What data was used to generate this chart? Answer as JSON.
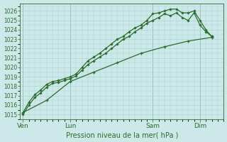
{
  "bg_color": "#cce8e8",
  "grid_color": "#aad4d4",
  "line_color": "#2d6b2d",
  "ylim": [
    1014.5,
    1026.8
  ],
  "yticks": [
    1015,
    1016,
    1017,
    1018,
    1019,
    1020,
    1021,
    1022,
    1023,
    1024,
    1025,
    1026
  ],
  "xlabel": "Pression niveau de la mer( hPa )",
  "xtick_labels": [
    "Ven",
    "Lun",
    "Sam",
    "Dim"
  ],
  "xtick_positions": [
    0,
    8,
    22,
    30
  ],
  "xlim": [
    -0.5,
    34
  ],
  "line_top": {
    "x": [
      0,
      1,
      2,
      3,
      4,
      5,
      6,
      7,
      8,
      9,
      10,
      11,
      12,
      13,
      14,
      15,
      16,
      17,
      18,
      19,
      20,
      21,
      22,
      23,
      24,
      25,
      26,
      27,
      28,
      29,
      30,
      31,
      32
    ],
    "y": [
      1015.2,
      1016.3,
      1017.1,
      1017.6,
      1018.2,
      1018.5,
      1018.6,
      1018.8,
      1019.0,
      1019.3,
      1020.0,
      1020.7,
      1021.1,
      1021.5,
      1022.0,
      1022.5,
      1023.0,
      1023.3,
      1023.8,
      1024.2,
      1024.5,
      1025.0,
      1025.7,
      1025.8,
      1026.0,
      1026.2,
      1026.2,
      1025.8,
      1025.8,
      1026.0,
      1025.0,
      1024.0,
      1023.3
    ]
  },
  "line_mid": {
    "x": [
      0,
      1,
      2,
      3,
      4,
      5,
      6,
      7,
      8,
      9,
      10,
      11,
      12,
      13,
      14,
      15,
      16,
      17,
      18,
      19,
      20,
      21,
      22,
      23,
      24,
      25,
      26,
      27,
      28,
      29,
      30,
      31,
      32
    ],
    "y": [
      1015.0,
      1016.0,
      1016.8,
      1017.3,
      1017.9,
      1018.3,
      1018.4,
      1018.6,
      1018.8,
      1019.1,
      1019.7,
      1020.3,
      1020.7,
      1021.1,
      1021.5,
      1022.0,
      1022.5,
      1023.0,
      1023.3,
      1023.8,
      1024.2,
      1024.7,
      1025.0,
      1025.3,
      1025.7,
      1025.5,
      1025.8,
      1025.3,
      1025.0,
      1025.8,
      1024.5,
      1023.8,
      1023.3
    ]
  },
  "line_straight": {
    "x": [
      0,
      4,
      8,
      12,
      16,
      20,
      24,
      28,
      32
    ],
    "y": [
      1015.2,
      1016.5,
      1018.5,
      1019.5,
      1020.5,
      1021.5,
      1022.2,
      1022.8,
      1023.2
    ]
  }
}
